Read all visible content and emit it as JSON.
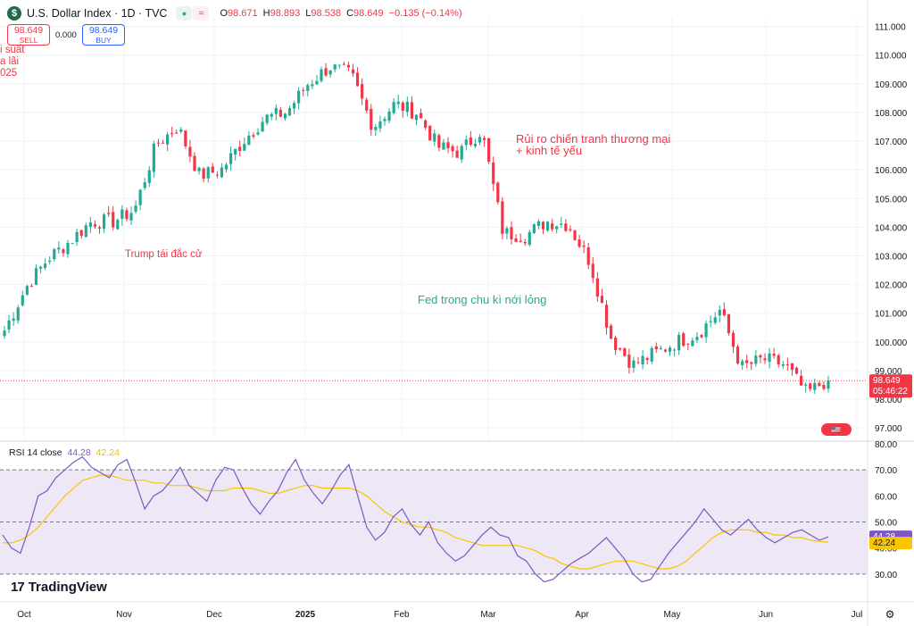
{
  "header": {
    "title": "U.S. Dollar Index · 1D · TVC",
    "logo": "$",
    "open": "98.671",
    "high": "98.893",
    "low": "98.538",
    "close": "98.649",
    "change": "−0.135 (−0.14%)",
    "open_label": "O",
    "high_label": "H",
    "low_label": "L",
    "close_label": "C"
  },
  "trade": {
    "sell_price": "98.649",
    "sell_label": "SELL",
    "spread": "0.000",
    "buy_price": "98.649",
    "buy_label": "BUY"
  },
  "partial_text": [
    "i suất",
    "a lãi",
    "025"
  ],
  "price_tag": {
    "price": "98.649",
    "countdown": "05:46:22"
  },
  "rsi_legend": {
    "label": "RSI 14 close",
    "rsi": "44.28",
    "ma": "42.24"
  },
  "rsi_tags": {
    "rsi": "44.28",
    "ma": "42.24"
  },
  "brand": "TradingView",
  "colors": {
    "up": "#22ab94",
    "down": "#f23645",
    "rsi": "#7e57c2",
    "rsi_ma": "#f7c600",
    "band": "#ede7f6",
    "annot_green": "#22ab94",
    "annot_red": "#f23645"
  },
  "chart_data": [
    {
      "type": "candlestick",
      "title": "U.S. Dollar Index · 1D · TVC",
      "y_ticks": [
        "111.000",
        "110.000",
        "109.000",
        "108.000",
        "107.000",
        "106.000",
        "105.000",
        "104.000",
        "103.000",
        "102.000",
        "101.000",
        "100.000",
        "99.000",
        "98.000",
        "97.000"
      ],
      "ylim": [
        96.6,
        111.3
      ],
      "x_ticks": [
        "Oct",
        "Nov",
        "Dec",
        "2025",
        "Feb",
        "Mar",
        "Apr",
        "May",
        "Jun",
        "Jul"
      ],
      "last_price": 98.649,
      "grid": true,
      "annotations": [
        {
          "text": "Trump tái đắc cử",
          "color": "red"
        },
        {
          "text": "Rủi ro chiến tranh thương mại",
          "color": "red"
        },
        {
          "text": "+ kinh tế yếu",
          "color": "red"
        },
        {
          "text": "Fed trong chu kì nới lỏng",
          "color": "green"
        }
      ],
      "close_path": [
        [
          "2024-09-27",
          100.4
        ],
        [
          "2024-10-04",
          101.9
        ],
        [
          "2024-10-11",
          102.9
        ],
        [
          "2024-10-18",
          103.5
        ],
        [
          "2024-10-25",
          104.2
        ],
        [
          "2024-11-01",
          104.2
        ],
        [
          "2024-11-08",
          104.6
        ],
        [
          "2024-11-15",
          106.9
        ],
        [
          "2024-11-22",
          107.5
        ],
        [
          "2024-11-29",
          105.8
        ],
        [
          "2024-12-06",
          106.0
        ],
        [
          "2024-12-13",
          107.0
        ],
        [
          "2024-12-20",
          107.8
        ],
        [
          "2024-12-27",
          108.0
        ],
        [
          "2025-01-03",
          109.0
        ],
        [
          "2025-01-10",
          109.6
        ],
        [
          "2025-01-17",
          109.3
        ],
        [
          "2025-01-24",
          107.5
        ],
        [
          "2025-01-31",
          108.3
        ],
        [
          "2025-02-07",
          108.0
        ],
        [
          "2025-02-14",
          106.8
        ],
        [
          "2025-02-21",
          106.6
        ],
        [
          "2025-02-28",
          107.4
        ],
        [
          "2025-03-07",
          103.8
        ],
        [
          "2025-03-14",
          103.7
        ],
        [
          "2025-03-21",
          104.2
        ],
        [
          "2025-03-28",
          104.1
        ],
        [
          "2025-04-04",
          102.8
        ],
        [
          "2025-04-11",
          100.1
        ],
        [
          "2025-04-18",
          99.2
        ],
        [
          "2025-04-25",
          99.6
        ],
        [
          "2025-05-02",
          100.0
        ],
        [
          "2025-05-09",
          100.3
        ],
        [
          "2025-05-16",
          101.1
        ],
        [
          "2025-05-23",
          99.1
        ],
        [
          "2025-05-30",
          99.4
        ],
        [
          "2025-06-06",
          99.2
        ],
        [
          "2025-06-13",
          98.2
        ],
        [
          "2025-06-20",
          98.7
        ]
      ]
    },
    {
      "type": "line",
      "title": "RSI 14 close",
      "series": [
        {
          "name": "RSI 14 close",
          "last": 44.28
        },
        {
          "name": "RSI-based MA",
          "last": 42.24
        }
      ],
      "y_ticks": [
        "80.00",
        "70.00",
        "60.00",
        "50.00",
        "40.00",
        "30.00"
      ],
      "ylim": [
        20,
        80
      ],
      "bands": [
        70,
        50,
        30
      ],
      "rsi_values": [
        45,
        40,
        38,
        48,
        60,
        62,
        67,
        70,
        73,
        75,
        71,
        69,
        67,
        72,
        74,
        65,
        55,
        60,
        62,
        66,
        71,
        64,
        61,
        58,
        66,
        71,
        70,
        63,
        57,
        53,
        58,
        62,
        69,
        74,
        66,
        61,
        57,
        62,
        68,
        72,
        60,
        48,
        43,
        46,
        52,
        55,
        49,
        45,
        50,
        42,
        38,
        35,
        37,
        41,
        45,
        48,
        45,
        44,
        37,
        35,
        30,
        27,
        28,
        31,
        34,
        36,
        38,
        41,
        44,
        40,
        36,
        30,
        27,
        28,
        33,
        38,
        42,
        46,
        50,
        55,
        51,
        47,
        45,
        48,
        51,
        47,
        44,
        42,
        44,
        46,
        47,
        45,
        43,
        44.28
      ],
      "ma_values": [
        42,
        42,
        43,
        45,
        48,
        52,
        56,
        60,
        63,
        66,
        67,
        68,
        68,
        67,
        66,
        66,
        66,
        65,
        65,
        64,
        64,
        64,
        63,
        62,
        62,
        62,
        63,
        63,
        63,
        62,
        61,
        61,
        62,
        63,
        64,
        64,
        63,
        63,
        63,
        63,
        62,
        60,
        57,
        54,
        52,
        50,
        49,
        48,
        48,
        47,
        46,
        44,
        43,
        42,
        41,
        41,
        41,
        41,
        41,
        40,
        39,
        37,
        36,
        34,
        33,
        32,
        32,
        33,
        34,
        35,
        35,
        35,
        34,
        33,
        32,
        32,
        33,
        35,
        38,
        41,
        44,
        46,
        47,
        47,
        47,
        46,
        46,
        45,
        45,
        44,
        44,
        43,
        42.5,
        42.24
      ]
    }
  ]
}
